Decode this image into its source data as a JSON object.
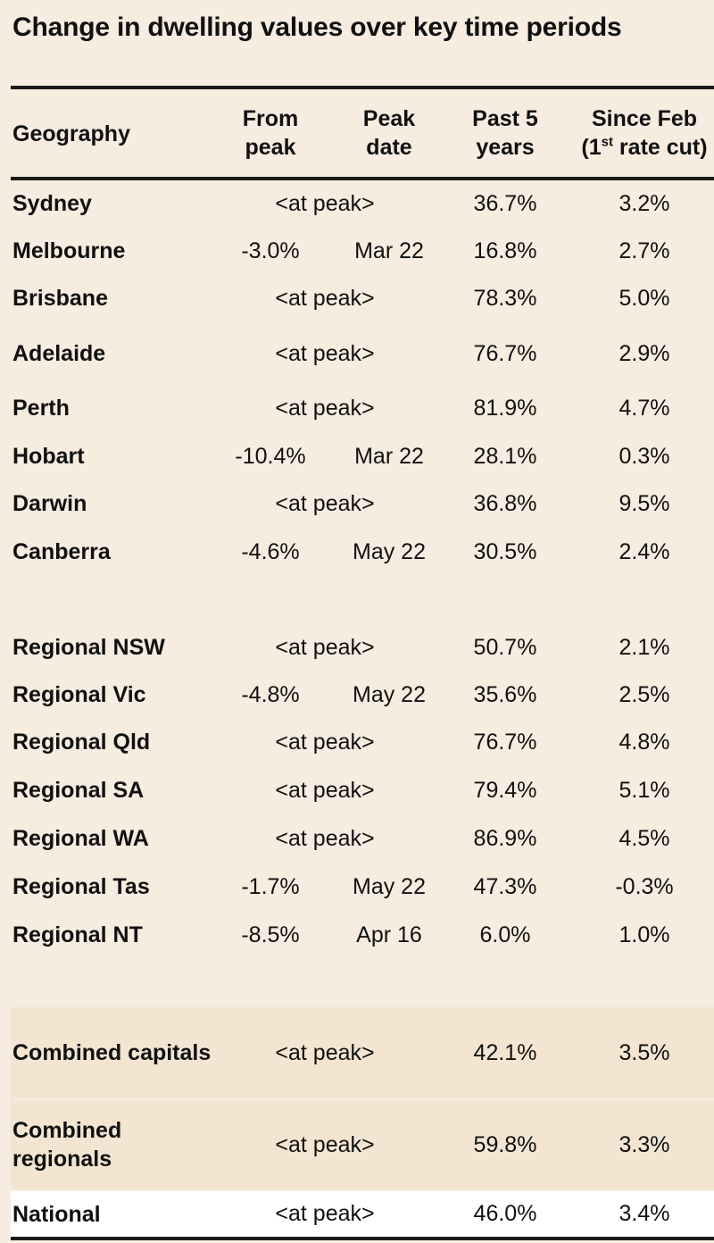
{
  "title": "Change in dwelling values over key time periods",
  "headers": {
    "geography": "Geography",
    "from_peak": [
      "From",
      "peak"
    ],
    "peak_date": [
      "Peak",
      "date"
    ],
    "past_5_years": [
      "Past 5",
      "years"
    ],
    "since_feb_line1": "Since Feb",
    "since_feb_line2_pre": "(1",
    "since_feb_line2_sup": "st",
    "since_feb_line2_post": " rate cut)"
  },
  "rows": [
    {
      "geo": "Sydney",
      "from_peak": "",
      "peak_date": "",
      "at_peak": "<at peak>",
      "past_5": "36.7%",
      "since_feb": "3.2%"
    },
    {
      "geo": "Melbourne",
      "from_peak": "-3.0%",
      "peak_date": "Mar 22",
      "at_peak": "",
      "past_5": "16.8%",
      "since_feb": "2.7%"
    },
    {
      "geo": "Brisbane",
      "from_peak": "",
      "peak_date": "",
      "at_peak": "<at peak>",
      "past_5": "78.3%",
      "since_feb": "5.0%"
    },
    {
      "geo": "Adelaide",
      "from_peak": "",
      "peak_date": "",
      "at_peak": "<at peak>",
      "past_5": "76.7%",
      "since_feb": "2.9%"
    },
    {
      "geo": "Perth",
      "from_peak": "",
      "peak_date": "",
      "at_peak": "<at peak>",
      "past_5": "81.9%",
      "since_feb": "4.7%"
    },
    {
      "geo": "Hobart",
      "from_peak": "-10.4%",
      "peak_date": "Mar 22",
      "at_peak": "",
      "past_5": "28.1%",
      "since_feb": "0.3%"
    },
    {
      "geo": "Darwin",
      "from_peak": "",
      "peak_date": "",
      "at_peak": "<at peak>",
      "past_5": "36.8%",
      "since_feb": "9.5%"
    },
    {
      "geo": "Canberra",
      "from_peak": "-4.6%",
      "peak_date": "May 22",
      "at_peak": "",
      "past_5": "30.5%",
      "since_feb": "2.4%"
    },
    {
      "geo": "Regional NSW",
      "from_peak": "",
      "peak_date": "",
      "at_peak": "<at peak>",
      "past_5": "50.7%",
      "since_feb": "2.1%"
    },
    {
      "geo": "Regional Vic",
      "from_peak": "-4.8%",
      "peak_date": "May 22",
      "at_peak": "",
      "past_5": "35.6%",
      "since_feb": "2.5%"
    },
    {
      "geo": "Regional Qld",
      "from_peak": "",
      "peak_date": "",
      "at_peak": "<at peak>",
      "past_5": "76.7%",
      "since_feb": "4.8%"
    },
    {
      "geo": "Regional SA",
      "from_peak": "",
      "peak_date": "",
      "at_peak": "<at peak>",
      "past_5": "79.4%",
      "since_feb": "5.1%"
    },
    {
      "geo": "Regional WA",
      "from_peak": "",
      "peak_date": "",
      "at_peak": "<at peak>",
      "past_5": "86.9%",
      "since_feb": "4.5%"
    },
    {
      "geo": "Regional Tas",
      "from_peak": "-1.7%",
      "peak_date": "May 22",
      "at_peak": "",
      "past_5": "47.3%",
      "since_feb": "-0.3%"
    },
    {
      "geo": "Regional NT",
      "from_peak": "-8.5%",
      "peak_date": "Apr 16",
      "at_peak": "",
      "past_5": "6.0%",
      "since_feb": "1.0%"
    },
    {
      "geo": "Combined capitals",
      "from_peak": "",
      "peak_date": "",
      "at_peak": "<at peak>",
      "past_5": "42.1%",
      "since_feb": "3.5%"
    },
    {
      "geo": "Combined regionals",
      "from_peak": "",
      "peak_date": "",
      "at_peak": "<at peak>",
      "past_5": "59.8%",
      "since_feb": "3.3%"
    },
    {
      "geo": "National",
      "from_peak": "",
      "peak_date": "",
      "at_peak": "<at peak>",
      "past_5": "46.0%",
      "since_feb": "3.4%"
    }
  ],
  "colors": {
    "background": "#f6ecdf",
    "shaded_rows": "#f3e5d1",
    "national_row": "#ffffff",
    "rules": "#1a1a1a"
  }
}
